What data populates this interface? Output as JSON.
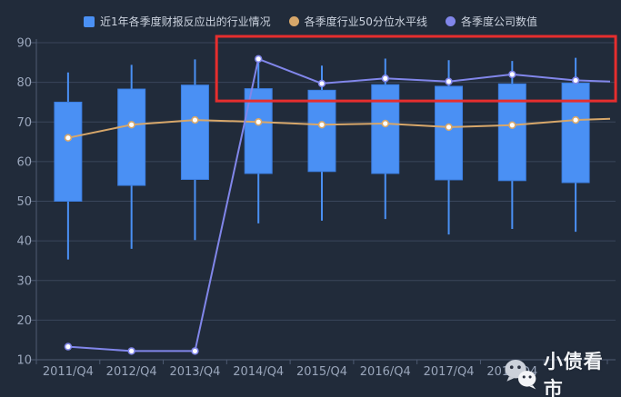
{
  "colors": {
    "background": "#212b3a",
    "grid_line": "#3a465b",
    "axis_line": "#4e5b72",
    "axis_label": "#9aa6bb",
    "legend_text": "#ccd3df",
    "box_blue": "#4a90f4",
    "median_line_tan": "#d7a76a",
    "company_line_purple": "#8186ea",
    "annotation_red": "#e62e2e",
    "watermark_text": "#f2f4f7"
  },
  "legend": {
    "items": [
      {
        "label": "近1年各季度财报反应出的行业情况",
        "marker": "square",
        "color": "#4a90f4"
      },
      {
        "label": "各季度行业50分位水平线",
        "marker": "circle",
        "color": "#d7a76a"
      },
      {
        "label": "各季度公司数值",
        "marker": "circle",
        "color": "#8186ea"
      }
    ]
  },
  "watermark": {
    "icon": "wechat-icon",
    "text": "小债看市"
  },
  "chart_data": {
    "type": "candlestick",
    "title": "",
    "categories": [
      "2011/Q4",
      "2012/Q4",
      "2013/Q4",
      "2014/Q4",
      "2015/Q4",
      "2016/Q4",
      "2017/Q4",
      "2018/Q4",
      ""
    ],
    "note": "ninth x-axis label hidden behind watermark; line series clipped at right edge of grid",
    "ylim": [
      10,
      90
    ],
    "y_ticks": [
      10,
      20,
      30,
      40,
      50,
      60,
      70,
      80,
      90
    ],
    "grid": true,
    "legend_position": "top-center",
    "series": [
      {
        "name": "近1年各季度财报反应出的行业情况",
        "type": "candlestick",
        "color": "#4a90f4",
        "points": [
          {
            "whisker_low": 35.3,
            "box_low": 50.0,
            "box_high": 75.0,
            "whisker_high": 82.5
          },
          {
            "whisker_low": 38.0,
            "box_low": 54.0,
            "box_high": 78.3,
            "whisker_high": 84.4
          },
          {
            "whisker_low": 40.2,
            "box_low": 55.5,
            "box_high": 79.3,
            "whisker_high": 85.8
          },
          {
            "whisker_low": 44.4,
            "box_low": 57.0,
            "box_high": 78.4,
            "whisker_high": 85.4
          },
          {
            "whisker_low": 45.1,
            "box_low": 57.5,
            "box_high": 78.0,
            "whisker_high": 84.2
          },
          {
            "whisker_low": 45.5,
            "box_low": 57.0,
            "box_high": 79.4,
            "whisker_high": 86.0
          },
          {
            "whisker_low": 41.6,
            "box_low": 55.4,
            "box_high": 79.0,
            "whisker_high": 85.6
          },
          {
            "whisker_low": 43.0,
            "box_low": 55.2,
            "box_high": 79.6,
            "whisker_high": 85.4
          },
          {
            "whisker_low": 42.3,
            "box_low": 54.7,
            "box_high": 79.8,
            "whisker_high": 86.2
          }
        ]
      },
      {
        "name": "各季度行业50分位水平线",
        "type": "line",
        "color": "#d7a76a",
        "values": [
          66.0,
          69.3,
          70.5,
          70.0,
          69.3,
          69.6,
          68.7,
          69.2,
          70.5
        ],
        "clipped_extension_value": 70.8
      },
      {
        "name": "各季度公司数值",
        "type": "line",
        "color": "#8186ea",
        "values": [
          13.3,
          12.2,
          12.2,
          85.9,
          79.7,
          81.0,
          80.2,
          82.0,
          80.5
        ],
        "clipped_extension_value": 80.2
      }
    ],
    "annotation_rect": {
      "color": "#e62e2e",
      "x0_slot": 2.84,
      "x1_slot": 9.13,
      "y0_value": 75.3,
      "y1_value": 91.6
    }
  }
}
